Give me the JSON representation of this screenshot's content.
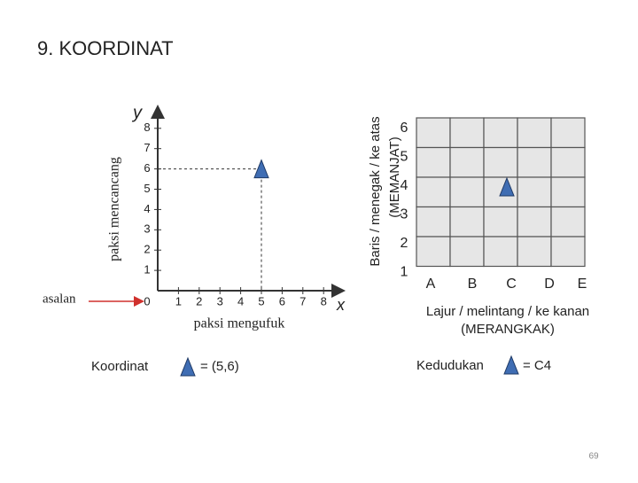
{
  "title": "9. KOORDINAT",
  "graph": {
    "y_label": "y",
    "x_label": "x",
    "y_axis_name": "paksi mencancang",
    "x_axis_name": "paksi mengufuk",
    "origin_label": "asalan",
    "x_ticks": [
      0,
      1,
      2,
      3,
      4,
      5,
      6,
      7,
      8
    ],
    "y_ticks": [
      1,
      2,
      3,
      4,
      5,
      6,
      7,
      8
    ],
    "point": {
      "x": 5,
      "y": 6
    },
    "caption": {
      "label": "Koordinat",
      "value": "= (5,6)"
    }
  },
  "grid": {
    "row_label": "Baris / menegak / ke atas",
    "row_label_2": "(MEMANJAT)",
    "rows": [
      6,
      5,
      4,
      3,
      2,
      1
    ],
    "columns": [
      "A",
      "B",
      "C",
      "D",
      "E"
    ],
    "column_label": "Lajur / melintang / ke kanan",
    "column_label_2": "(MERANGKAK)",
    "caption": {
      "label": "Kedudukan",
      "value": "= C4"
    }
  },
  "page_number": "69"
}
